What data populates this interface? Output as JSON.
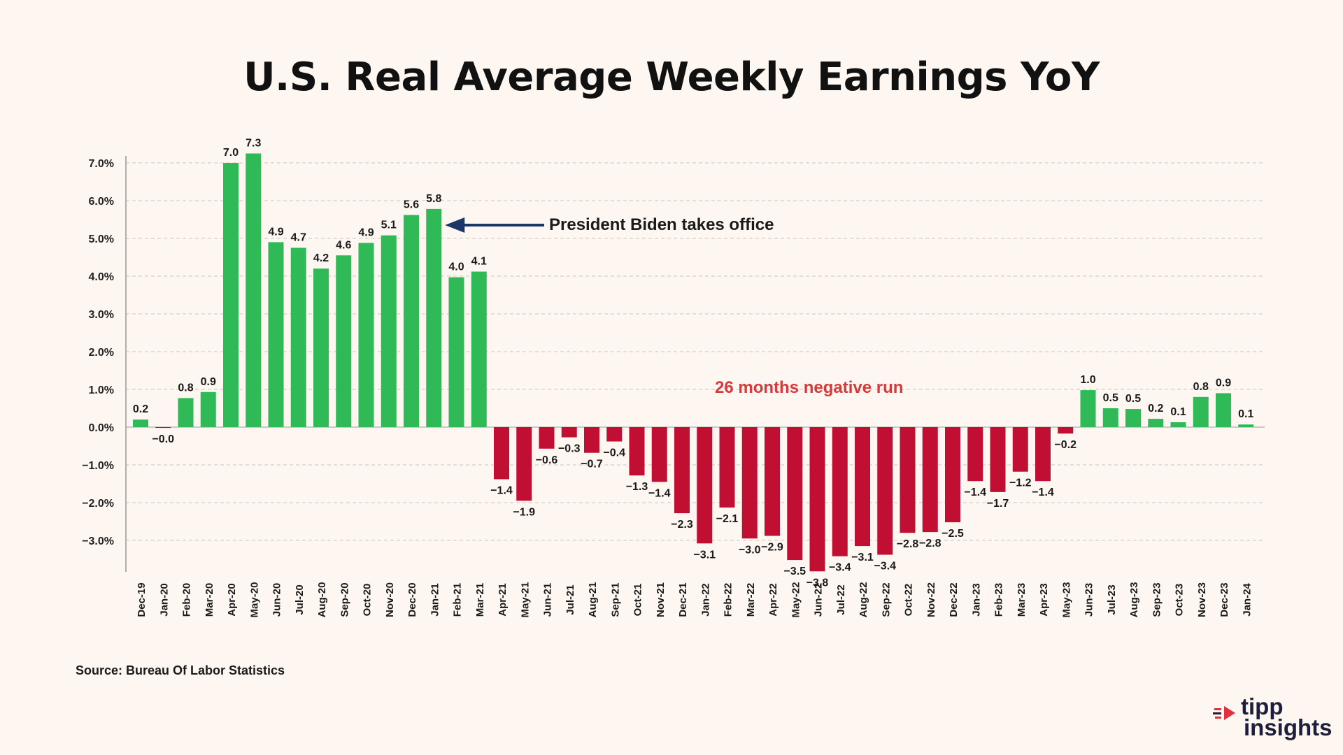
{
  "title": "U.S. Real Average Weekly Earnings YoY",
  "source": "Source: Bureau Of Labor Statistics",
  "logo": {
    "word1": "tipp",
    "word2": "insights"
  },
  "colors": {
    "positive": "#2fba57",
    "negative": "#c10f33",
    "annotation_callout": "#1a3768",
    "annotation_run": "#d63b3b",
    "grid": "#c9c5c2",
    "logo_accent": "#e0303a",
    "logo_text": "#1e1e3a"
  },
  "annotations": {
    "biden": "President Biden takes office",
    "negative_run": "26 months negative run"
  },
  "chart_data": {
    "type": "bar",
    "title": "U.S. Real Average Weekly Earnings YoY",
    "xlabel": "",
    "ylabel": "",
    "ylim": [
      -3.9,
      7.4
    ],
    "yticks": [
      7,
      6,
      5,
      4,
      3,
      2,
      1,
      0,
      -1,
      -2,
      -3
    ],
    "ytick_labels": [
      "7.0%",
      "6.0%",
      "5.0%",
      "4.0%",
      "3.0%",
      "2.0%",
      "1.0%",
      "0.0%",
      "−1.0%",
      "−2.0%",
      "−3.0%"
    ],
    "grid": true,
    "categories": [
      "Dec-19",
      "Jan-20",
      "Feb-20",
      "Mar-20",
      "Apr-20",
      "May-20",
      "Jun-20",
      "Jul-20",
      "Aug-20",
      "Sep-20",
      "Oct-20",
      "Nov-20",
      "Dec-20",
      "Jan-21",
      "Feb-21",
      "Mar-21",
      "Apr-21",
      "May-21",
      "Jun-21",
      "Jul-21",
      "Aug-21",
      "Sep-21",
      "Oct-21",
      "Nov-21",
      "Dec-21",
      "Jan-22",
      "Feb-22",
      "Mar-22",
      "Apr-22",
      "May-22",
      "Jun-22",
      "Jul-22",
      "Aug-22",
      "Sep-22",
      "Oct-22",
      "Nov-22",
      "Dec-22",
      "Jan-23",
      "Feb-23",
      "Mar-23",
      "Apr-23",
      "May-23",
      "Jun-23",
      "Jul-23",
      "Aug-23",
      "Sep-23",
      "Oct-23",
      "Nov-23",
      "Dec-23",
      "Jan-24"
    ],
    "values": [
      0.2,
      -0.02,
      0.77,
      0.93,
      7.0,
      7.25,
      4.9,
      4.75,
      4.2,
      4.55,
      4.88,
      5.08,
      5.62,
      5.78,
      3.97,
      4.12,
      -1.38,
      -1.95,
      -0.57,
      -0.27,
      -0.68,
      -0.38,
      -1.28,
      -1.45,
      -2.28,
      -3.08,
      -2.13,
      -2.95,
      -2.88,
      -3.52,
      -3.82,
      -3.42,
      -3.15,
      -3.38,
      -2.8,
      -2.78,
      -2.52,
      -1.43,
      -1.72,
      -1.18,
      -1.43,
      -0.17,
      0.98,
      0.5,
      0.48,
      0.22,
      0.13,
      0.8,
      0.9,
      0.07
    ],
    "data_labels": [
      "0.2",
      "−0.0",
      "0.8",
      "0.9",
      "7.0",
      "7.3",
      "4.9",
      "4.7",
      "4.2",
      "4.6",
      "4.9",
      "5.1",
      "5.6",
      "5.8",
      "4.0",
      "4.1",
      "−1.4",
      "−1.9",
      "−0.6",
      "−0.3",
      "−0.7",
      "−0.4",
      "−1.3",
      "−1.4",
      "−2.3",
      "−3.1",
      "−2.1",
      "−3.0",
      "−2.9",
      "−3.5",
      "−3.8",
      "−3.4",
      "−3.1",
      "−3.4",
      "−2.8",
      "−2.8",
      "−2.5",
      "−1.4",
      "−1.7",
      "−1.2",
      "−1.4",
      "−0.2",
      "1.0",
      "0.5",
      "0.5",
      "0.2",
      "0.1",
      "0.8",
      "0.9",
      "0.1"
    ],
    "annotations": [
      {
        "text": "President Biden takes office",
        "category": "Jan-21"
      },
      {
        "text": "26 months negative run",
        "category": "Dec-21"
      }
    ]
  }
}
